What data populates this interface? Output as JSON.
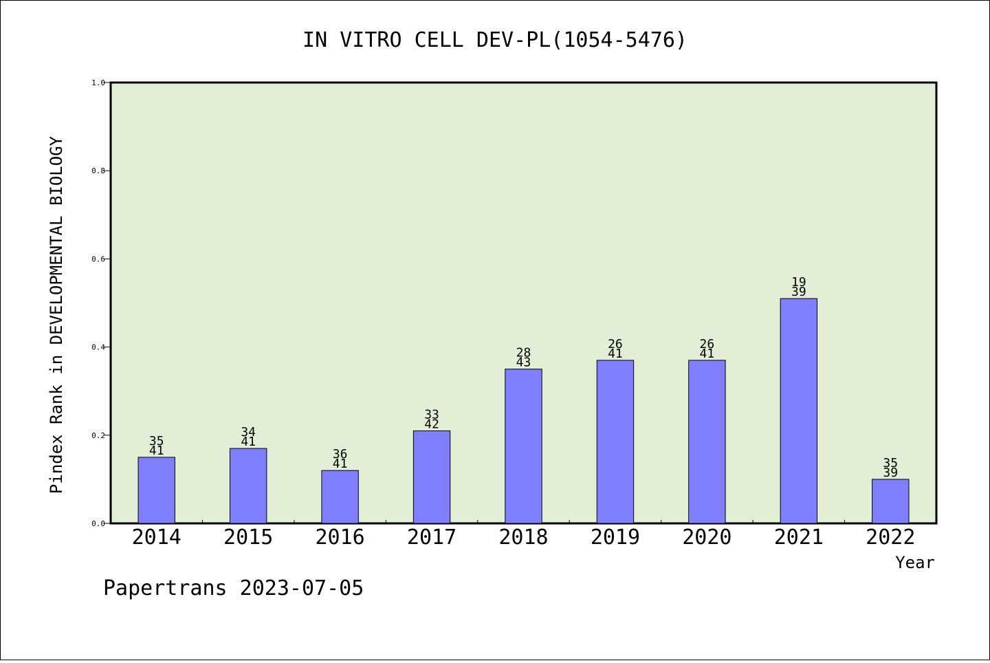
{
  "chart_data": {
    "type": "bar",
    "title": "IN VITRO CELL DEV-PL(1054-5476)",
    "xlabel": "Year",
    "ylabel": "Pindex Rank in DEVELOPMENTAL BIOLOGY",
    "ylim": [
      0,
      1.0
    ],
    "yticks": [
      "0.0",
      "0.2",
      "0.4",
      "0.6",
      "0.8",
      "1.0"
    ],
    "grid": false,
    "categories": [
      "2014",
      "2015",
      "2016",
      "2017",
      "2018",
      "2019",
      "2020",
      "2021",
      "2022"
    ],
    "values": [
      0.15,
      0.17,
      0.12,
      0.21,
      0.35,
      0.37,
      0.37,
      0.51,
      0.1
    ],
    "rank_labels": [
      "35",
      "34",
      "36",
      "33",
      "28",
      "26",
      "26",
      "19",
      "35"
    ],
    "total_labels": [
      "41",
      "41",
      "41",
      "42",
      "43",
      "41",
      "41",
      "39",
      "39"
    ],
    "colors": {
      "plot_background": "#e2efd6",
      "bar_fill": "#8080ff",
      "bar_stroke": "#000000"
    }
  },
  "footer": {
    "credit": "Papertrans 2023-07-05"
  }
}
